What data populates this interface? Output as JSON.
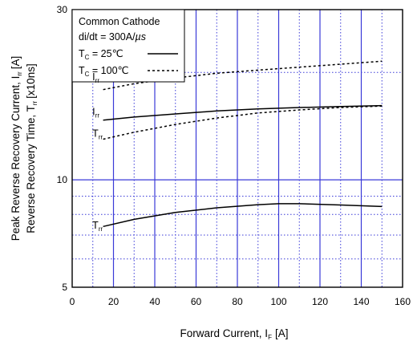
{
  "chart_data": {
    "type": "line",
    "xlabel": "Forward Current, I",
    "xlabel_sub": "F",
    "xlabel_unit": "[A]",
    "ylabel_line1": "Peak Reverse Recovery Current, I",
    "ylabel_line1_sub": "rr",
    "ylabel_line1_unit": "[A]",
    "ylabel_line2": "Reverse Recovery Time, T",
    "ylabel_line2_sub": "rr",
    "ylabel_line2_unit": "[x10ns]",
    "xlim": [
      0,
      160
    ],
    "ylim": [
      5,
      30
    ],
    "y_scale": "log",
    "grid": true,
    "x_ticks": [
      {
        "value": 0,
        "label": "0"
      },
      {
        "value": 20,
        "label": "20"
      },
      {
        "value": 40,
        "label": "40"
      },
      {
        "value": 60,
        "label": "60"
      },
      {
        "value": 80,
        "label": "80"
      },
      {
        "value": 100,
        "label": "100"
      },
      {
        "value": 120,
        "label": "120"
      },
      {
        "value": 140,
        "label": "140"
      },
      {
        "value": 160,
        "label": "160"
      }
    ],
    "y_ticks": [
      {
        "value": 5,
        "label": "5"
      },
      {
        "value": 10,
        "label": "10"
      },
      {
        "value": 30,
        "label": "30"
      }
    ],
    "x_minor_grid": [
      10,
      30,
      50,
      70,
      90,
      110,
      130,
      150
    ],
    "y_minor_grid": [
      6,
      7,
      8,
      9,
      20
    ],
    "legend": {
      "position": "top-left",
      "line1": "Common Cathode",
      "line2": "di/dt = 300A/",
      "line2_unit": "µs",
      "entries": [
        {
          "text": "T",
          "sub": "C",
          "rest": " =   25℃",
          "style": "solid"
        },
        {
          "text": "T",
          "sub": "C",
          "rest": " = 100℃",
          "style": "dashed"
        }
      ]
    },
    "annotations": [
      {
        "text": "I",
        "sub": "rr",
        "x": 9,
        "y": 19.0
      },
      {
        "text": "I",
        "sub": "rr",
        "x": 9,
        "y": 15.2
      },
      {
        "text": "T",
        "sub": "rr",
        "x": 9,
        "y": 13.2
      },
      {
        "text": "T",
        "sub": "rr",
        "x": 9,
        "y": 7.3
      }
    ],
    "series": [
      {
        "style": "dashed",
        "x": [
          15,
          30,
          50,
          70,
          90,
          110,
          130,
          150
        ],
        "y": [
          17.9,
          18.6,
          19.3,
          19.9,
          20.3,
          20.7,
          21.1,
          21.5
        ]
      },
      {
        "style": "solid",
        "x": [
          15,
          30,
          50,
          70,
          90,
          110,
          130,
          150
        ],
        "y": [
          14.7,
          15.0,
          15.3,
          15.6,
          15.8,
          15.95,
          16.05,
          16.15
        ]
      },
      {
        "style": "dashed",
        "x": [
          15,
          30,
          50,
          70,
          90,
          110,
          130,
          150
        ],
        "y": [
          13.0,
          13.6,
          14.3,
          14.9,
          15.4,
          15.7,
          15.95,
          16.1
        ]
      },
      {
        "style": "solid",
        "x": [
          15,
          30,
          50,
          70,
          90,
          100,
          110,
          130,
          150
        ],
        "y": [
          7.4,
          7.75,
          8.1,
          8.35,
          8.52,
          8.57,
          8.57,
          8.5,
          8.42
        ]
      }
    ]
  }
}
